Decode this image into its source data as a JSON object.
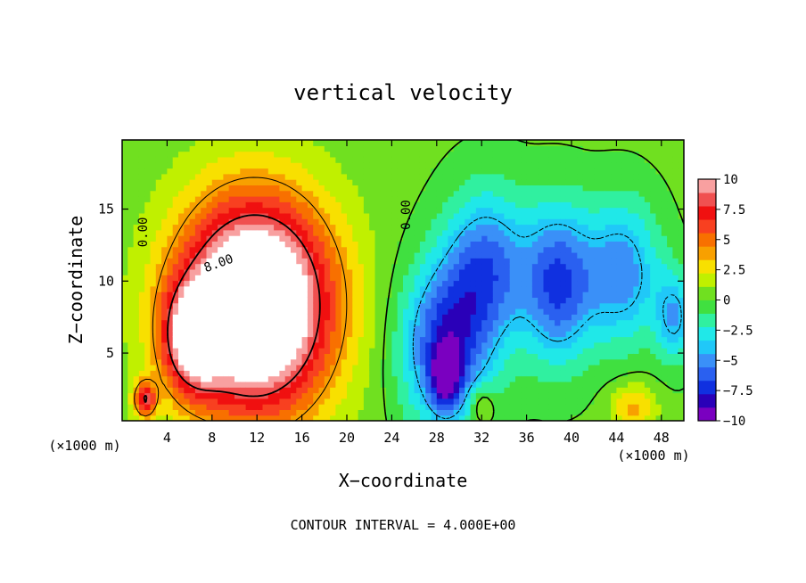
{
  "chart_data": {
    "type": "heatmap",
    "title": "vertical velocity",
    "xlabel": "X−coordinate",
    "ylabel": "Z−coordinate",
    "x_unit_left": "(×1000 m)",
    "x_unit_right": "(×1000 m)",
    "footer": "CONTOUR INTERVAL = 4.000E+00",
    "xlim": [
      0,
      50
    ],
    "ylim": [
      0.3,
      19.8
    ],
    "x_ticks": [
      4,
      8,
      12,
      16,
      20,
      24,
      28,
      32,
      36,
      40,
      44,
      48
    ],
    "y_ticks": [
      5,
      10,
      15
    ],
    "colorbar": {
      "ticks": [
        "10",
        "7.5",
        "5",
        "2.5",
        "0",
        "−2.5",
        "−5",
        "−7.5",
        "−10"
      ],
      "range": [
        -10,
        10
      ],
      "colors": [
        "#7a00c0",
        "#2a00b8",
        "#1030e0",
        "#2a60f0",
        "#3a90f8",
        "#20c8f8",
        "#20e8e8",
        "#30f0a0",
        "#40e040",
        "#70e020",
        "#c0f000",
        "#f8e000",
        "#f8a000",
        "#f87000",
        "#f84020",
        "#f01010",
        "#f05050",
        "#f8a0a0"
      ]
    },
    "contour_labels": [
      {
        "text": "0.00",
        "x": 1.9,
        "z": 13.4,
        "angle": -90
      },
      {
        "text": "0.00",
        "x": 25.3,
        "z": 14.6,
        "angle": -90
      },
      {
        "text": "8.00",
        "x": 8.6,
        "z": 11.2,
        "angle": -20
      }
    ],
    "features": [
      {
        "name": "updraft core",
        "x": 11.8,
        "z": 8.3,
        "w": 16.0,
        "sx": 4.8,
        "sz": 5.2
      },
      {
        "name": "updraft lower left",
        "x": 6.2,
        "z": 6.0,
        "w": 7.5,
        "sx": 1.8,
        "sz": 2.5
      },
      {
        "name": "updraft surface left",
        "x": 2.0,
        "z": 1.8,
        "w": 7.0,
        "sx": 0.7,
        "sz": 0.9
      },
      {
        "name": "downdraft band 1",
        "x": 28.8,
        "z": 5.5,
        "w": -7.5,
        "sx": 2.8,
        "sz": 4.0
      },
      {
        "name": "downdraft narrow",
        "x": 28.8,
        "z": 3.4,
        "w": -6.0,
        "sx": 0.9,
        "sz": 1.5
      },
      {
        "name": "downdraft band 2",
        "x": 32.5,
        "z": 11.0,
        "w": -6.0,
        "sx": 2.6,
        "sz": 3.8
      },
      {
        "name": "downdraft band 3",
        "x": 38.8,
        "z": 9.8,
        "w": -7.0,
        "sx": 2.2,
        "sz": 3.8
      },
      {
        "name": "downdraft band 4",
        "x": 44.5,
        "z": 10.6,
        "w": -5.5,
        "sx": 2.4,
        "sz": 3.5
      },
      {
        "name": "downdraft edge",
        "x": 49.2,
        "z": 7.5,
        "w": -4.5,
        "sx": 1.2,
        "sz": 2.2
      },
      {
        "name": "updraft surface right",
        "x": 45.5,
        "z": 1.2,
        "w": 3.5,
        "sx": 1.4,
        "sz": 1.2
      },
      {
        "name": "updraft surface mid",
        "x": 32.0,
        "z": 1.4,
        "w": 3.0,
        "sx": 0.8,
        "sz": 1.0
      }
    ]
  }
}
